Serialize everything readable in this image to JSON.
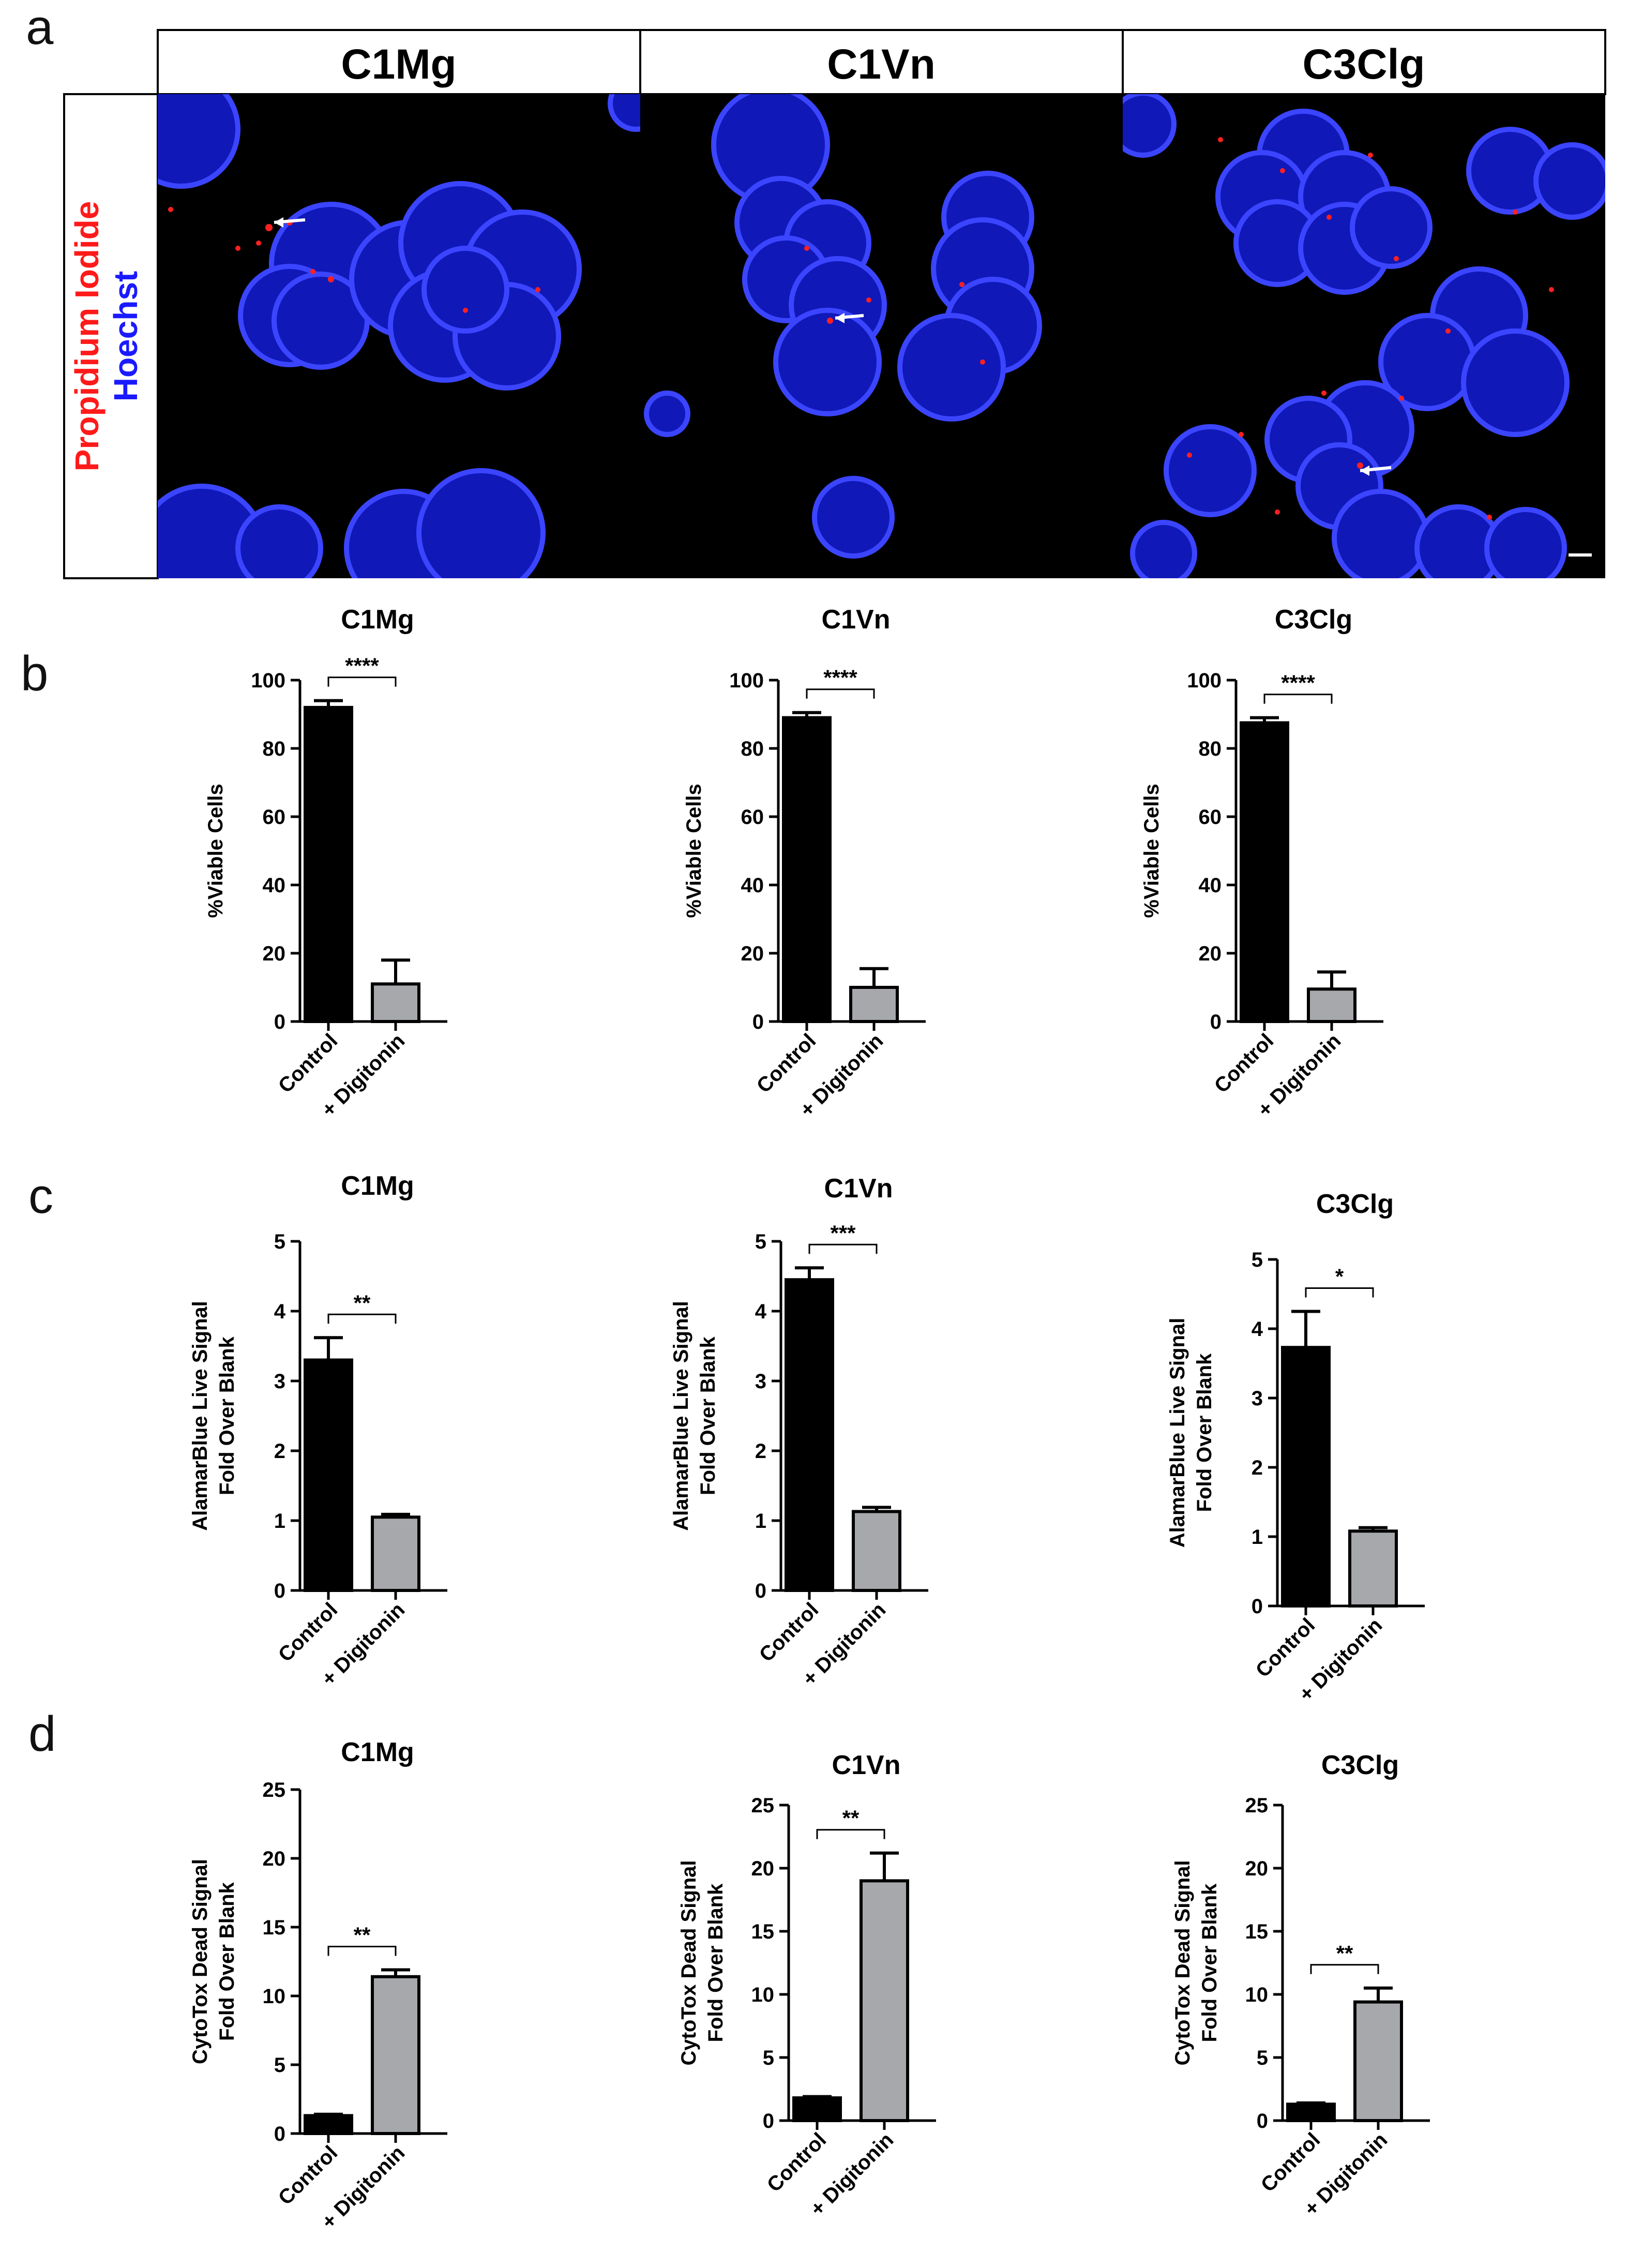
{
  "panel_letters": [
    "a",
    "b",
    "c",
    "d"
  ],
  "micrograph": {
    "channel_label_red": "Propidium Iodide",
    "channel_label_blue": "Hoechst",
    "headers": [
      "C1Mg",
      "C1Vn",
      "C3Clg"
    ],
    "colors": {
      "red": "#ff1a1a",
      "blue": "#1a1aff",
      "background": "#000000"
    }
  },
  "colors": {
    "control_bar": "#000000",
    "digitonin_bar": "#a6a8ab"
  },
  "chart_data": [
    {
      "type": "bar",
      "panel": "b",
      "title": "C1Mg",
      "ylabel": "%Viable Cells",
      "categories": [
        "Control",
        "+ Digitonin"
      ],
      "values": [
        92,
        11
      ],
      "errors": [
        2,
        7
      ],
      "ylim": [
        0,
        100
      ],
      "yticks": [
        0,
        20,
        40,
        60,
        80,
        100
      ],
      "significance": "****"
    },
    {
      "type": "bar",
      "panel": "b",
      "title": "C1Vn",
      "ylabel": "%Viable Cells",
      "categories": [
        "Control",
        "+ Digitonin"
      ],
      "values": [
        89,
        10
      ],
      "errors": [
        1.5,
        5.5
      ],
      "ylim": [
        0,
        100
      ],
      "yticks": [
        0,
        20,
        40,
        60,
        80,
        100
      ],
      "significance": "****"
    },
    {
      "type": "bar",
      "panel": "b",
      "title": "C3Clg",
      "ylabel": "%Viable Cells",
      "categories": [
        "Control",
        "+ Digitonin"
      ],
      "values": [
        87.5,
        9.5
      ],
      "errors": [
        1.5,
        5
      ],
      "ylim": [
        0,
        100
      ],
      "yticks": [
        0,
        20,
        40,
        60,
        80,
        100
      ],
      "significance": "****"
    },
    {
      "type": "bar",
      "panel": "c",
      "title": "C1Mg",
      "ylabel": [
        "AlamarBlue Live Signal",
        "Fold Over Blank"
      ],
      "categories": [
        "Control",
        "+ Digitonin"
      ],
      "values": [
        3.3,
        1.05
      ],
      "errors": [
        0.32,
        0.04
      ],
      "ylim": [
        0,
        5
      ],
      "yticks": [
        0,
        1,
        2,
        3,
        4,
        5
      ],
      "significance": "**"
    },
    {
      "type": "bar",
      "panel": "c",
      "title": "C1Vn",
      "ylabel": [
        "AlamarBlue Live Signal",
        "Fold Over Blank"
      ],
      "categories": [
        "Control",
        "+ Digitonin"
      ],
      "values": [
        4.45,
        1.13
      ],
      "errors": [
        0.17,
        0.06
      ],
      "ylim": [
        0,
        5
      ],
      "yticks": [
        0,
        1,
        2,
        3,
        4,
        5
      ],
      "significance": "***"
    },
    {
      "type": "bar",
      "panel": "c",
      "title": "C3Clg",
      "ylabel": [
        "AlamarBlue Live Signal",
        "Fold Over Blank"
      ],
      "categories": [
        "Control",
        "+ Digitonin"
      ],
      "values": [
        3.73,
        1.08
      ],
      "errors": [
        0.52,
        0.05
      ],
      "ylim": [
        0,
        5
      ],
      "yticks": [
        0,
        1,
        2,
        3,
        4,
        5
      ],
      "significance": "*"
    },
    {
      "type": "bar",
      "panel": "d",
      "title": "C1Mg",
      "ylabel": [
        "CytoTox Dead Signal",
        "Fold Over Blank"
      ],
      "categories": [
        "Control",
        "+ Digitonin"
      ],
      "values": [
        1.3,
        11.4
      ],
      "errors": [
        0.1,
        0.5
      ],
      "ylim": [
        0,
        25
      ],
      "yticks": [
        0,
        5,
        10,
        15,
        20,
        25
      ],
      "significance": "**"
    },
    {
      "type": "bar",
      "panel": "d",
      "title": "C1Vn",
      "ylabel": [
        "CytoTox Dead Signal",
        "Fold Over Blank"
      ],
      "categories": [
        "Control",
        "+ Digitonin"
      ],
      "values": [
        1.8,
        19
      ],
      "errors": [
        0.1,
        2.2
      ],
      "ylim": [
        0,
        25
      ],
      "yticks": [
        0,
        5,
        10,
        15,
        20,
        25
      ],
      "significance": "**"
    },
    {
      "type": "bar",
      "panel": "d",
      "title": "C3Clg",
      "ylabel": [
        "CytoTox Dead Signal",
        "Fold Over Blank"
      ],
      "categories": [
        "Control",
        "+ Digitonin"
      ],
      "values": [
        1.3,
        9.4
      ],
      "errors": [
        0.1,
        1.1
      ],
      "ylim": [
        0,
        25
      ],
      "yticks": [
        0,
        5,
        10,
        15,
        20,
        25
      ],
      "significance": "**"
    }
  ]
}
